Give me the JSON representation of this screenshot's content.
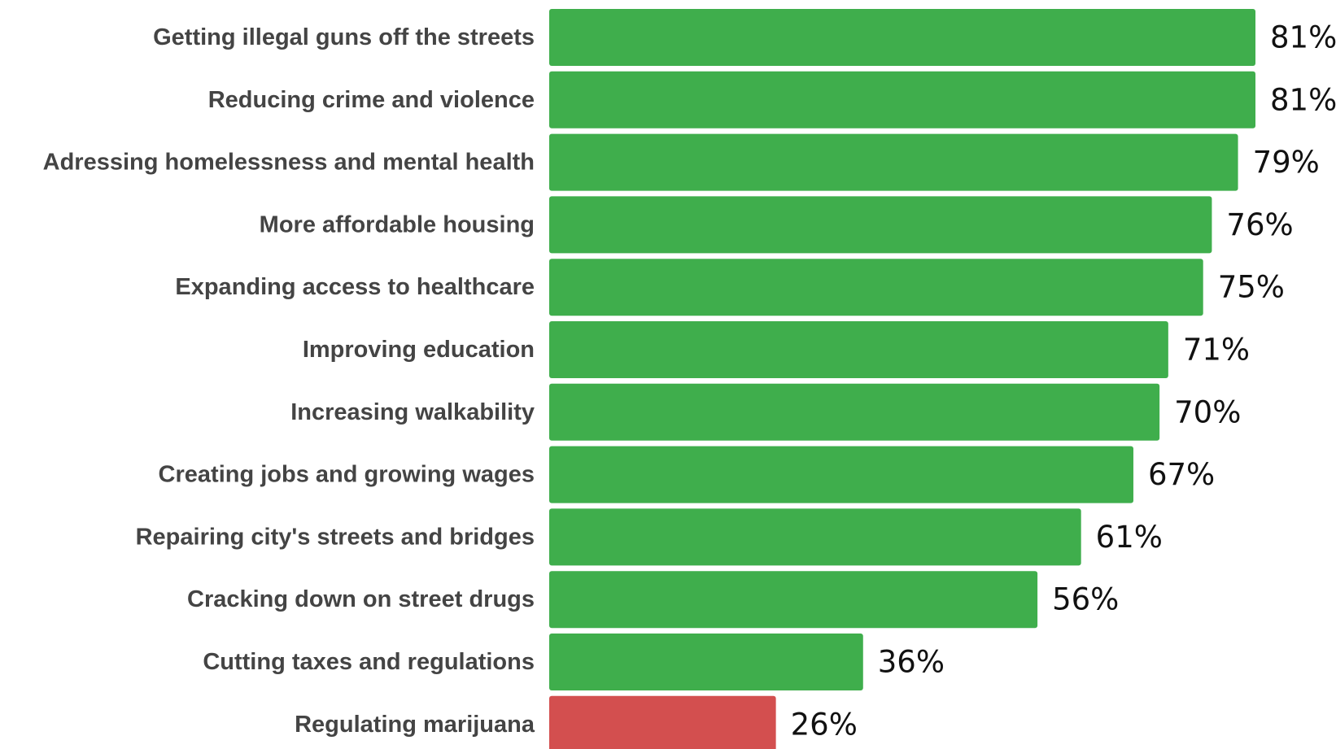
{
  "chart_data": {
    "type": "bar",
    "orientation": "horizontal",
    "categories": [
      "Getting illegal guns off the streets",
      "Reducing crime and violence",
      "Adressing homelessness and mental health",
      "More affordable housing",
      "Expanding access to healthcare",
      "Improving education",
      "Increasing walkability",
      "Creating jobs and growing wages",
      "Repairing city's streets and bridges",
      "Cracking down on street drugs",
      "Cutting taxes and regulations",
      "Regulating marijuana"
    ],
    "values": [
      81,
      81,
      79,
      76,
      75,
      71,
      70,
      67,
      61,
      56,
      36,
      26
    ],
    "value_labels": [
      "81%",
      "81%",
      "79%",
      "76%",
      "75%",
      "71%",
      "70%",
      "67%",
      "61%",
      "56%",
      "36%",
      "26%"
    ],
    "bar_colors": [
      "#3fae4c",
      "#3fae4c",
      "#3fae4c",
      "#3fae4c",
      "#3fae4c",
      "#3fae4c",
      "#3fae4c",
      "#3fae4c",
      "#3fae4c",
      "#3fae4c",
      "#3fae4c",
      "#d34f4f"
    ],
    "title": "",
    "xlabel": "",
    "ylabel": "",
    "xlim": [
      0,
      81
    ],
    "grid": false,
    "legend": "none"
  }
}
